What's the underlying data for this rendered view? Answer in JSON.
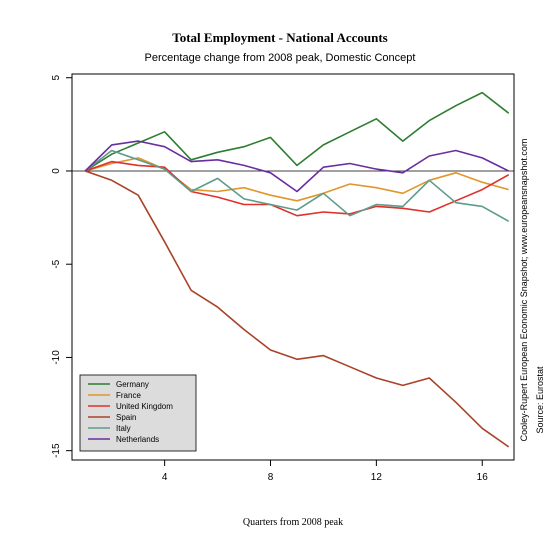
{
  "chart_data": {
    "type": "line",
    "title": "Total Employment - National Accounts",
    "subtitle": "Percentage change from 2008 peak, Domestic Concept",
    "xlabel": "Quarters from 2008 peak",
    "ylabel": "",
    "xlim": [
      0.5,
      17.2
    ],
    "ylim": [
      -15.5,
      5.2
    ],
    "x_ticks": [
      4,
      8,
      12,
      16
    ],
    "y_ticks": [
      5,
      0,
      -5,
      -10,
      -15
    ],
    "zero_line": true,
    "grid": false,
    "legend_position": "bottom-left",
    "side_notes": [
      "Cooley-Rupert European Economic Snapshot; www.europeansnapshot.com",
      "Source: Eurostat"
    ],
    "x": [
      1,
      2,
      3,
      4,
      5,
      6,
      7,
      8,
      9,
      10,
      11,
      12,
      13,
      14,
      15,
      16,
      17
    ],
    "series": [
      {
        "name": "Germany",
        "color": "#2e7d32",
        "values": [
          0,
          0.9,
          1.5,
          2.1,
          0.6,
          1.0,
          1.3,
          1.8,
          0.3,
          1.4,
          2.1,
          2.8,
          1.6,
          2.7,
          3.5,
          4.2,
          3.1
        ]
      },
      {
        "name": "France",
        "color": "#e0962a",
        "values": [
          0,
          0.4,
          0.7,
          0.1,
          -1.0,
          -1.1,
          -0.9,
          -1.3,
          -1.6,
          -1.2,
          -0.7,
          -0.9,
          -1.2,
          -0.5,
          -0.1,
          -0.6,
          -1.0
        ]
      },
      {
        "name": "United Kingdom",
        "color": "#e0302a",
        "values": [
          0,
          0.5,
          0.3,
          0.2,
          -1.1,
          -1.4,
          -1.8,
          -1.8,
          -2.4,
          -2.2,
          -2.3,
          -1.9,
          -2.0,
          -2.2,
          -1.6,
          -1.0,
          -0.2
        ]
      },
      {
        "name": "Spain",
        "color": "#a8432a",
        "values": [
          0,
          -0.5,
          -1.3,
          -3.8,
          -6.4,
          -7.3,
          -8.5,
          -9.6,
          -10.1,
          -9.9,
          -10.5,
          -11.1,
          -11.5,
          -11.1,
          -12.4,
          -13.8,
          -14.8
        ]
      },
      {
        "name": "Italy",
        "color": "#5f9b8c",
        "values": [
          0,
          1.1,
          0.6,
          0.1,
          -1.1,
          -0.4,
          -1.5,
          -1.8,
          -2.1,
          -1.2,
          -2.4,
          -1.8,
          -1.9,
          -0.5,
          -1.7,
          -1.9,
          -2.7
        ]
      },
      {
        "name": "Netherlands",
        "color": "#6a2d9f",
        "values": [
          0,
          1.4,
          1.6,
          1.3,
          0.5,
          0.6,
          0.3,
          -0.1,
          -1.1,
          0.2,
          0.4,
          0.1,
          -0.1,
          0.8,
          1.1,
          0.7,
          0.0
        ]
      }
    ]
  }
}
